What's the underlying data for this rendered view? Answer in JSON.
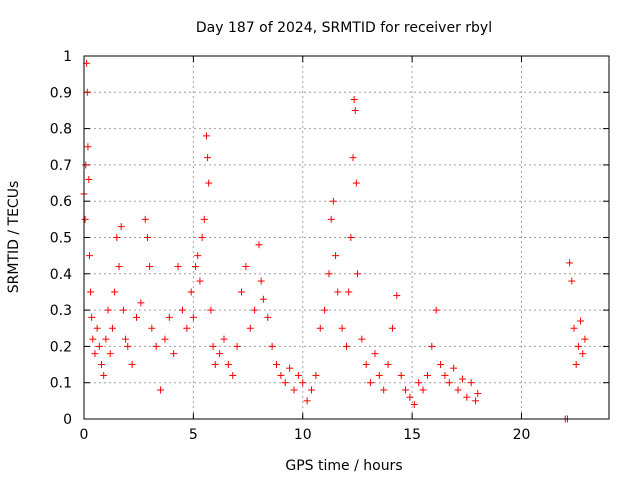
{
  "chart_data": {
    "type": "scatter",
    "title": "Day 187 of 2024, SRMTID for receiver rbyl",
    "xlabel": "GPS time / hours",
    "ylabel": "SRMTID / TECUs",
    "xlim": [
      0,
      24
    ],
    "ylim": [
      0,
      1
    ],
    "grid": true,
    "marker": "+",
    "x_ticks": [
      0,
      5,
      10,
      15,
      20
    ],
    "x_tick_labels": [
      "0",
      "5",
      "10",
      "15",
      "20"
    ],
    "y_ticks": [
      0,
      0.1,
      0.2,
      0.3,
      0.4,
      0.5,
      0.6,
      0.7,
      0.8,
      0.9,
      1
    ],
    "y_tick_labels": [
      "0",
      "0.1",
      "0.2",
      "0.3",
      "0.4",
      "0.5",
      "0.6",
      "0.7",
      "0.8",
      "0.9",
      "1"
    ],
    "series": [
      {
        "name": "SRMTID rbyl",
        "color": "#ff0000",
        "points": [
          [
            0.0,
            0.62
          ],
          [
            0.05,
            0.55
          ],
          [
            0.08,
            0.7
          ],
          [
            0.12,
            0.98
          ],
          [
            0.15,
            0.9
          ],
          [
            0.18,
            0.75
          ],
          [
            0.22,
            0.66
          ],
          [
            0.25,
            0.45
          ],
          [
            0.3,
            0.35
          ],
          [
            0.35,
            0.28
          ],
          [
            0.4,
            0.22
          ],
          [
            0.5,
            0.18
          ],
          [
            0.6,
            0.25
          ],
          [
            0.7,
            0.2
          ],
          [
            0.8,
            0.15
          ],
          [
            0.9,
            0.12
          ],
          [
            1.0,
            0.22
          ],
          [
            1.1,
            0.3
          ],
          [
            1.2,
            0.18
          ],
          [
            1.3,
            0.25
          ],
          [
            1.4,
            0.35
          ],
          [
            1.5,
            0.5
          ],
          [
            1.6,
            0.42
          ],
          [
            1.7,
            0.53
          ],
          [
            1.8,
            0.3
          ],
          [
            1.9,
            0.22
          ],
          [
            2.0,
            0.2
          ],
          [
            2.2,
            0.15
          ],
          [
            2.4,
            0.28
          ],
          [
            2.6,
            0.32
          ],
          [
            2.8,
            0.55
          ],
          [
            2.9,
            0.5
          ],
          [
            3.0,
            0.42
          ],
          [
            3.1,
            0.25
          ],
          [
            3.3,
            0.2
          ],
          [
            3.5,
            0.08
          ],
          [
            3.7,
            0.22
          ],
          [
            3.9,
            0.28
          ],
          [
            4.1,
            0.18
          ],
          [
            4.3,
            0.42
          ],
          [
            4.5,
            0.3
          ],
          [
            4.7,
            0.25
          ],
          [
            4.9,
            0.35
          ],
          [
            5.0,
            0.28
          ],
          [
            5.1,
            0.42
          ],
          [
            5.2,
            0.45
          ],
          [
            5.3,
            0.38
          ],
          [
            5.4,
            0.5
          ],
          [
            5.5,
            0.55
          ],
          [
            5.6,
            0.78
          ],
          [
            5.65,
            0.72
          ],
          [
            5.7,
            0.65
          ],
          [
            5.8,
            0.3
          ],
          [
            5.9,
            0.2
          ],
          [
            6.0,
            0.15
          ],
          [
            6.2,
            0.18
          ],
          [
            6.4,
            0.22
          ],
          [
            6.6,
            0.15
          ],
          [
            6.8,
            0.12
          ],
          [
            7.0,
            0.2
          ],
          [
            7.2,
            0.35
          ],
          [
            7.4,
            0.42
          ],
          [
            7.6,
            0.25
          ],
          [
            7.8,
            0.3
          ],
          [
            8.0,
            0.48
          ],
          [
            8.1,
            0.38
          ],
          [
            8.2,
            0.33
          ],
          [
            8.4,
            0.28
          ],
          [
            8.6,
            0.2
          ],
          [
            8.8,
            0.15
          ],
          [
            9.0,
            0.12
          ],
          [
            9.2,
            0.1
          ],
          [
            9.4,
            0.14
          ],
          [
            9.6,
            0.08
          ],
          [
            9.8,
            0.12
          ],
          [
            10.0,
            0.1
          ],
          [
            10.2,
            0.05
          ],
          [
            10.4,
            0.08
          ],
          [
            10.6,
            0.12
          ],
          [
            10.8,
            0.25
          ],
          [
            11.0,
            0.3
          ],
          [
            11.2,
            0.4
          ],
          [
            11.3,
            0.55
          ],
          [
            11.4,
            0.6
          ],
          [
            11.5,
            0.45
          ],
          [
            11.6,
            0.35
          ],
          [
            11.8,
            0.25
          ],
          [
            12.0,
            0.2
          ],
          [
            12.1,
            0.35
          ],
          [
            12.2,
            0.5
          ],
          [
            12.3,
            0.72
          ],
          [
            12.35,
            0.88
          ],
          [
            12.4,
            0.85
          ],
          [
            12.45,
            0.65
          ],
          [
            12.5,
            0.4
          ],
          [
            12.7,
            0.22
          ],
          [
            12.9,
            0.15
          ],
          [
            13.1,
            0.1
          ],
          [
            13.3,
            0.18
          ],
          [
            13.5,
            0.12
          ],
          [
            13.7,
            0.08
          ],
          [
            13.9,
            0.15
          ],
          [
            14.1,
            0.25
          ],
          [
            14.3,
            0.34
          ],
          [
            14.5,
            0.12
          ],
          [
            14.7,
            0.08
          ],
          [
            14.9,
            0.06
          ],
          [
            15.1,
            0.04
          ],
          [
            15.3,
            0.1
          ],
          [
            15.5,
            0.08
          ],
          [
            15.7,
            0.12
          ],
          [
            15.9,
            0.2
          ],
          [
            16.1,
            0.3
          ],
          [
            16.3,
            0.15
          ],
          [
            16.5,
            0.12
          ],
          [
            16.7,
            0.1
          ],
          [
            16.9,
            0.14
          ],
          [
            17.1,
            0.08
          ],
          [
            17.3,
            0.11
          ],
          [
            17.5,
            0.06
          ],
          [
            17.7,
            0.1
          ],
          [
            17.9,
            0.05
          ],
          [
            18.0,
            0.07
          ],
          [
            22.0,
            0.0
          ],
          [
            22.1,
            0.0
          ],
          [
            22.2,
            0.43
          ],
          [
            22.3,
            0.38
          ],
          [
            22.4,
            0.25
          ],
          [
            22.5,
            0.15
          ],
          [
            22.6,
            0.2
          ],
          [
            22.7,
            0.27
          ],
          [
            22.8,
            0.18
          ],
          [
            22.9,
            0.22
          ]
        ]
      }
    ]
  }
}
